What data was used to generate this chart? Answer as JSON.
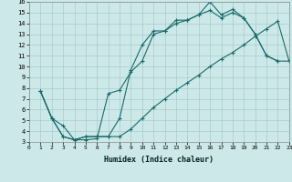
{
  "xlabel": "Humidex (Indice chaleur)",
  "bg_color": "#cce8e8",
  "grid_color": "#aacccc",
  "line_color": "#1a6b6b",
  "xlim": [
    0,
    23
  ],
  "ylim": [
    3,
    16
  ],
  "xticks": [
    0,
    1,
    2,
    3,
    4,
    5,
    6,
    7,
    8,
    9,
    10,
    11,
    12,
    13,
    14,
    15,
    16,
    17,
    18,
    19,
    20,
    21,
    22,
    23
  ],
  "yticks": [
    3,
    4,
    5,
    6,
    7,
    8,
    9,
    10,
    11,
    12,
    13,
    14,
    15,
    16
  ],
  "line1_x": [
    1,
    2,
    3,
    4,
    5,
    6,
    7,
    8,
    9,
    10,
    11,
    12,
    13,
    14,
    15,
    16,
    17,
    18,
    19,
    20,
    21,
    22
  ],
  "line1_y": [
    7.7,
    5.2,
    4.5,
    3.2,
    3.2,
    3.3,
    7.5,
    7.8,
    9.5,
    10.5,
    13.0,
    13.3,
    14.3,
    14.3,
    14.8,
    16.0,
    14.8,
    15.3,
    14.5,
    13.0,
    11.0,
    10.5
  ],
  "line2_x": [
    1,
    2,
    3,
    4,
    5,
    6,
    7,
    8,
    9,
    10,
    11,
    12,
    13,
    14,
    15,
    16,
    17,
    18,
    19,
    20,
    21,
    22,
    23
  ],
  "line2_y": [
    7.7,
    5.2,
    3.5,
    3.2,
    3.5,
    3.5,
    3.5,
    5.2,
    9.7,
    12.0,
    13.3,
    13.3,
    14.0,
    14.3,
    14.8,
    15.2,
    14.5,
    15.0,
    14.5,
    13.0,
    11.0,
    10.5,
    10.5
  ],
  "line3_x": [
    1,
    2,
    3,
    4,
    5,
    6,
    7,
    8,
    9,
    10,
    11,
    12,
    13,
    14,
    15,
    16,
    17,
    18,
    19,
    20,
    21,
    22,
    23
  ],
  "line3_y": [
    7.7,
    5.2,
    3.5,
    3.2,
    3.5,
    3.5,
    3.5,
    3.5,
    4.2,
    5.2,
    6.2,
    7.0,
    7.8,
    8.5,
    9.2,
    10.0,
    10.7,
    11.3,
    12.0,
    12.8,
    13.5,
    14.2,
    10.5
  ]
}
